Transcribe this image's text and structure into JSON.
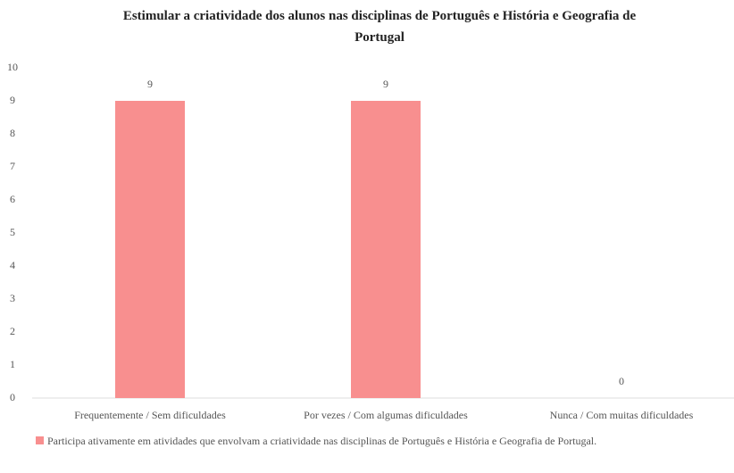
{
  "chart_data": {
    "type": "bar",
    "title": "Estimular a criatividade dos alunos nas disciplinas de Português e História e Geografia de Portugal",
    "categories": [
      "Frequentemente / Sem dificuldades",
      "Por vezes / Com algumas dificuldades",
      "Nunca / Com muitas dificuldades"
    ],
    "series": [
      {
        "name": "Participa ativamente em atividades que envolvam a criatividade nas disciplinas de Português e História e Geografia de Portugal.",
        "color": "#f88f8f",
        "values": [
          9,
          9,
          0
        ]
      }
    ],
    "ylim": [
      0,
      10
    ],
    "yticks": [
      0,
      1,
      2,
      3,
      4,
      5,
      6,
      7,
      8,
      9,
      10
    ],
    "grid": false,
    "legend": "bottom"
  }
}
